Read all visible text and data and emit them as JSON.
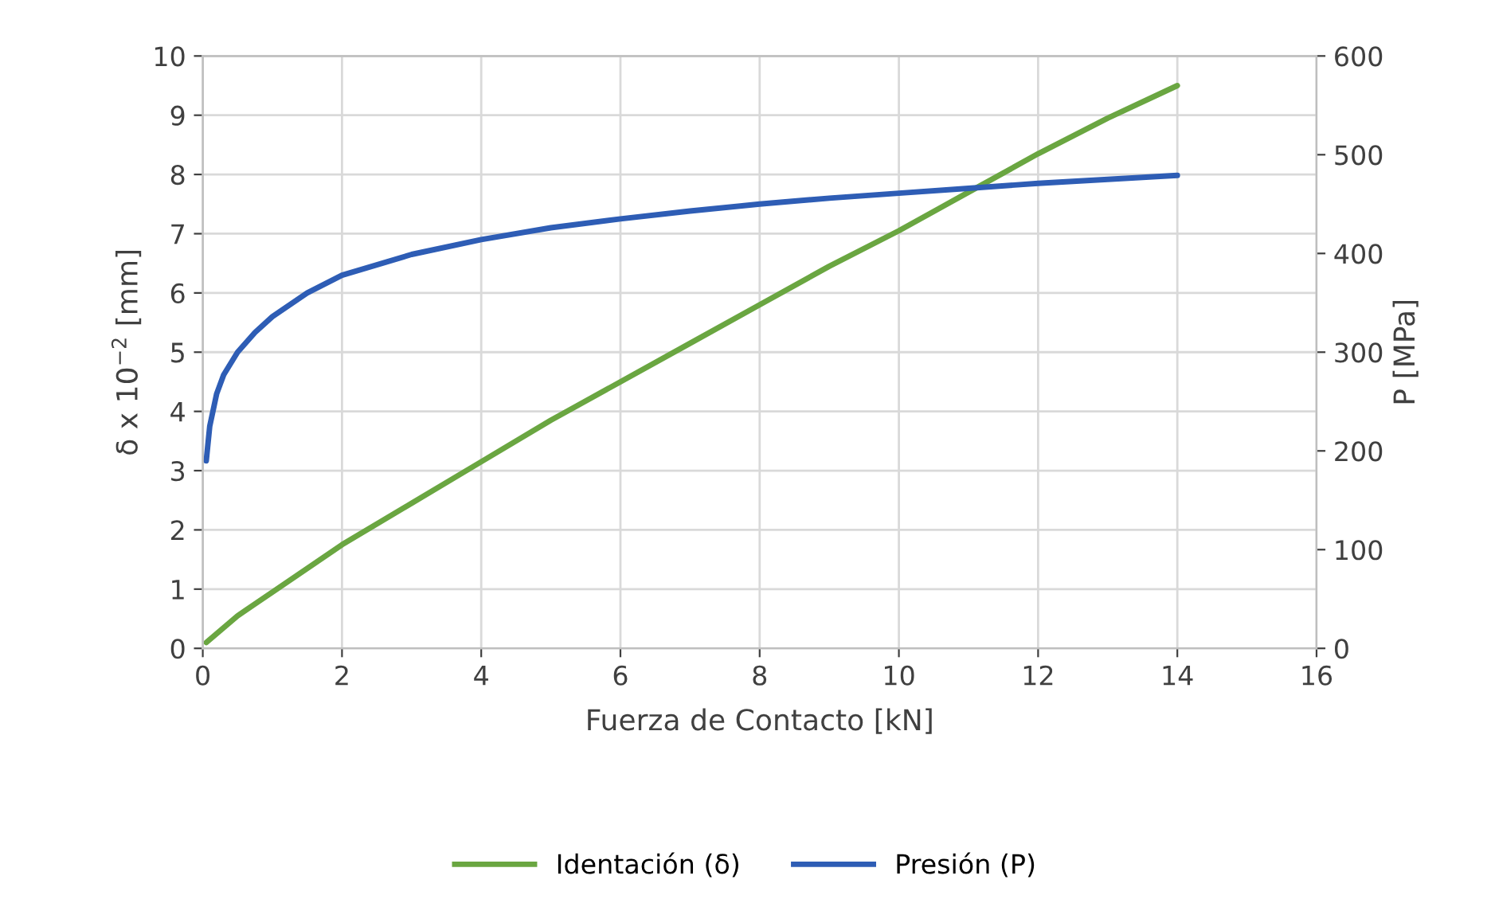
{
  "chart_data": {
    "type": "line",
    "xlabel": "Fuerza de Contacto [kN]",
    "ylabel": "δ x 10$^{−2}$ [mm]",
    "y2label": "P [MPa]",
    "xlim": [
      0,
      16
    ],
    "xticks": [
      0,
      2,
      4,
      6,
      8,
      10,
      12,
      14,
      16
    ],
    "ylim": [
      0,
      10
    ],
    "yticks": [
      0,
      1,
      2,
      3,
      4,
      5,
      6,
      7,
      8,
      9,
      10
    ],
    "y2lim": [
      0,
      600
    ],
    "y2ticks": [
      0,
      100,
      200,
      300,
      400,
      500,
      600
    ],
    "grid": true,
    "legend": "bottom",
    "marker": "none",
    "line_style": "solid",
    "series": [
      {
        "name": "Identación (δ)",
        "color": "#6aa641",
        "x": [
          0.05,
          0.5,
          1,
          2,
          3,
          4,
          5,
          6,
          7,
          8,
          9,
          10,
          11,
          12,
          13,
          14
        ],
        "values": [
          0.1,
          0.55,
          0.95,
          1.75,
          2.45,
          3.15,
          3.85,
          4.5,
          5.15,
          5.8,
          6.45,
          7.05,
          7.7,
          8.35,
          8.95,
          9.5
        ]
      },
      {
        "name": "Presión (P)",
        "color": "#2e5db5",
        "axis": "y2",
        "x": [
          0.05,
          0.1,
          0.2,
          0.3,
          0.5,
          0.75,
          1,
          1.5,
          2,
          3,
          4,
          5,
          6,
          7,
          8,
          9,
          10,
          11,
          12,
          13,
          14
        ],
        "values": [
          190,
          225,
          258,
          277,
          300,
          320,
          336,
          360,
          378,
          399,
          414,
          426,
          435,
          443,
          450,
          456,
          461,
          466,
          471,
          475,
          479
        ]
      }
    ]
  }
}
